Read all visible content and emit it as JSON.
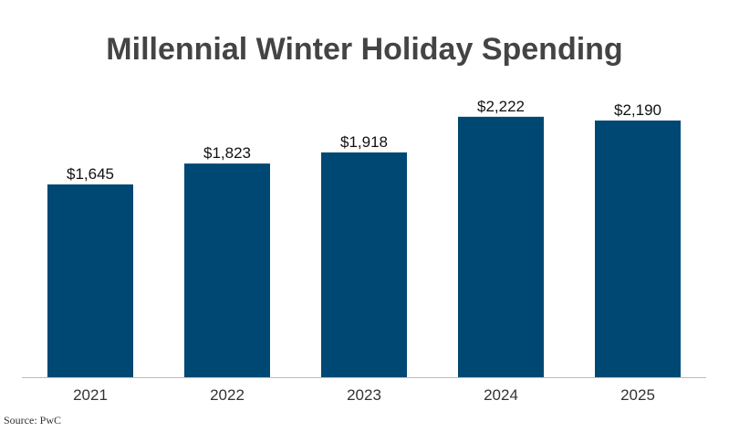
{
  "chart_data": {
    "type": "bar",
    "title": "Millennial Winter Holiday Spending",
    "categories": [
      "2021",
      "2022",
      "2023",
      "2024",
      "2025"
    ],
    "values": [
      1645,
      1823,
      1918,
      2222,
      2190
    ],
    "value_labels": [
      "$1,645",
      "$1,823",
      "$1,918",
      "$2,222",
      "$2,190"
    ],
    "xlabel": "",
    "ylabel": "",
    "ylim": [
      0,
      2400
    ],
    "grid": false,
    "legend": "none",
    "bar_color": "#004874",
    "source": "Source: PwC"
  }
}
